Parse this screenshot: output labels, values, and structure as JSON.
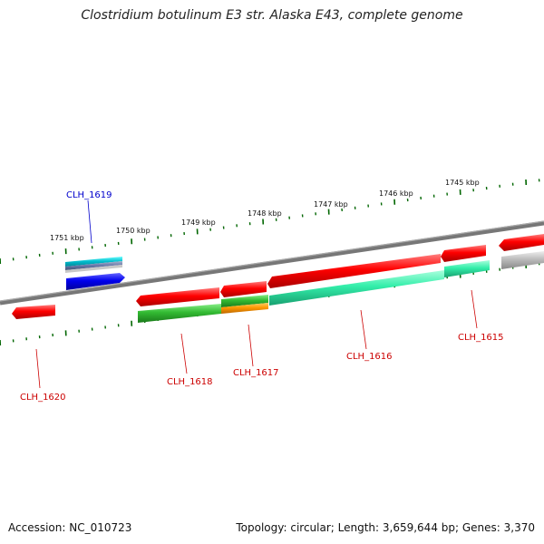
{
  "title": "Clostridium botulinum E3 str. Alaska E43, complete genome",
  "accession_label": "Accession: NC_010723",
  "topology_label": "Topology: circular; Length: 3,659,644 bp; Genes: 3,370",
  "kbp_labels": [
    "1751 kbp",
    "1750 kbp",
    "1749 kbp",
    "1748 kbp",
    "1747 kbp",
    "1746 kbp",
    "1745 kbp"
  ],
  "genes": [
    {
      "name": "CLH_1619",
      "color": "#0000cc"
    },
    {
      "name": "CLH_1620",
      "color": "#cc0000"
    },
    {
      "name": "CLH_1618",
      "color": "#cc0000"
    },
    {
      "name": "CLH_1617",
      "color": "#cc0000"
    },
    {
      "name": "CLH_1616",
      "color": "#cc0000"
    },
    {
      "name": "CLH_1615",
      "color": "#cc0000"
    }
  ],
  "colors": {
    "backbone": "#808080",
    "cds": "#ff0000",
    "blue_cds": "#0000ee",
    "cyan_feature": "#00cccc",
    "green_feature": "#33bb33",
    "teal_feature": "#33eeaa",
    "orange_feature": "#ff9900",
    "grey_feature": "#bbbbbb",
    "tick": "#006600"
  }
}
